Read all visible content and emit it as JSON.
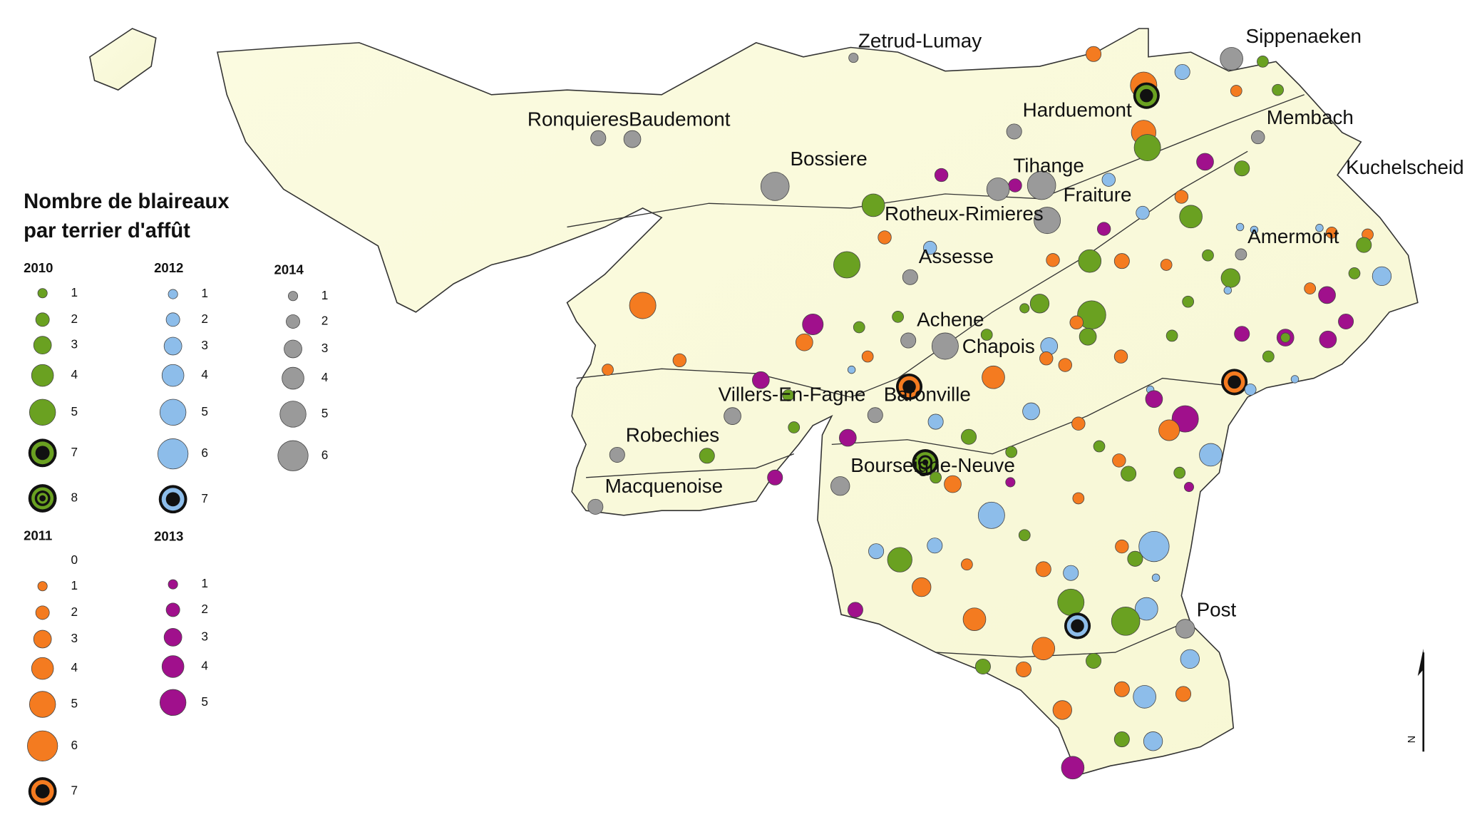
{
  "legend": {
    "title": [
      "Nombre de blaireaux",
      "par terrier d'affût"
    ],
    "groups": [
      {
        "year": "2010",
        "color": "#6aa121",
        "items": [
          1,
          2,
          3,
          4,
          5,
          7,
          8
        ]
      },
      {
        "year": "2012",
        "color": "#8dbdea",
        "items": [
          1,
          2,
          3,
          4,
          5,
          6,
          7
        ]
      },
      {
        "year": "2014",
        "color": "#9a9a9a",
        "items": [
          1,
          2,
          3,
          4,
          5,
          6
        ]
      },
      {
        "year": "2011",
        "color": "#f47b20",
        "items": [
          0,
          1,
          2,
          3,
          4,
          5,
          6,
          7
        ]
      },
      {
        "year": "2013",
        "color": "#a0108c",
        "items": [
          1,
          2,
          3,
          4,
          5
        ]
      }
    ]
  },
  "places": [
    "Zetrud-Lumay",
    "Sippenaeken",
    "Harduemont",
    "Membach",
    "RonquieresBaudemont",
    "Bossiere",
    "Tihange",
    "Kuchelscheid",
    "Fraiture",
    "Rotheux-Rimieres",
    "Amermont",
    "Assesse",
    "Achene",
    "Chapois",
    "Villers-En-Fagne",
    "Baronville",
    "Robechies",
    "Bourseigne-Neuve",
    "Macquenoise",
    "Post"
  ],
  "north": "N"
}
